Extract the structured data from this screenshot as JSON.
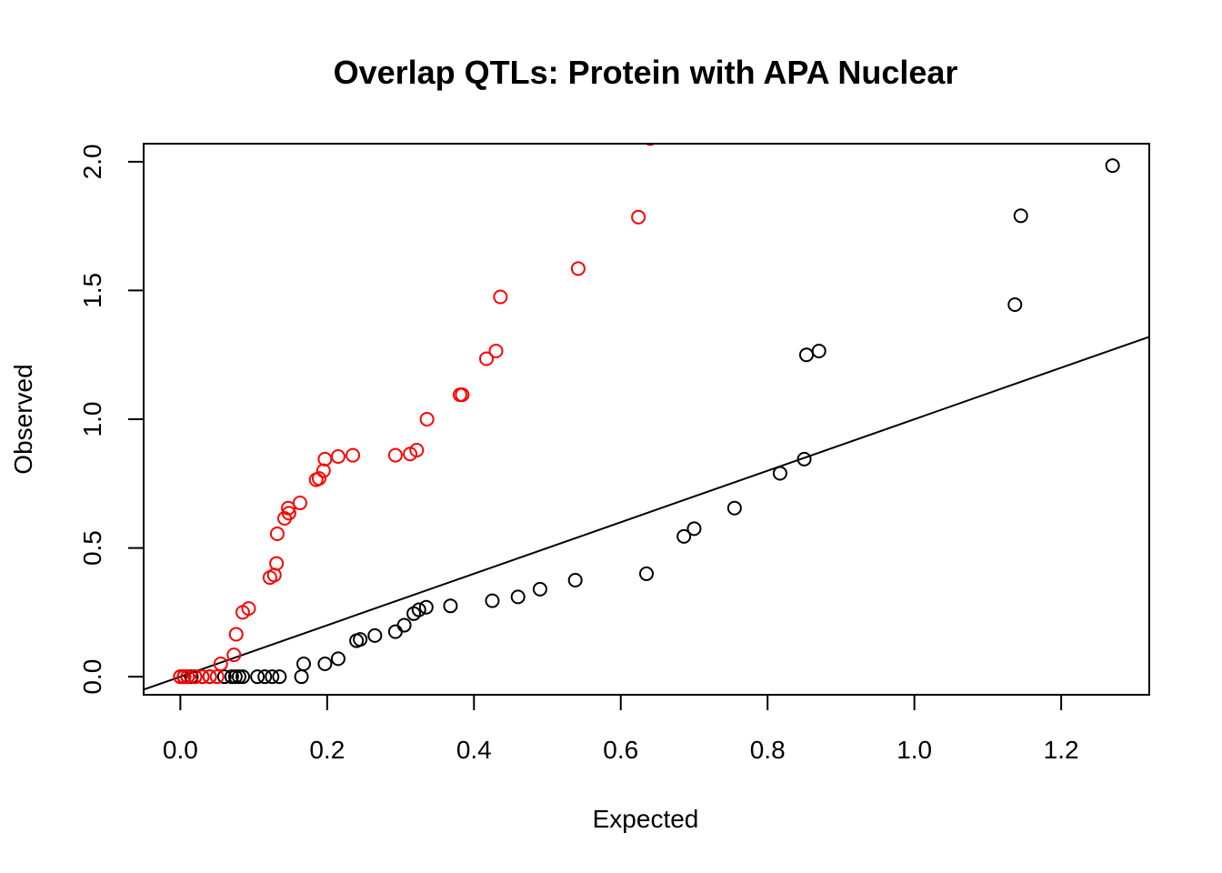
{
  "chart_data": {
    "type": "scatter",
    "title": "Overlap QTLs: Protein with APA Nuclear",
    "xlabel": "Expected",
    "ylabel": "Observed",
    "xlim": [
      -0.05,
      1.32
    ],
    "ylim": [
      -0.07,
      2.07
    ],
    "x_ticks": [
      {
        "value": 0.0,
        "label": "0.0"
      },
      {
        "value": 0.2,
        "label": "0.2"
      },
      {
        "value": 0.4,
        "label": "0.4"
      },
      {
        "value": 0.6,
        "label": "0.6"
      },
      {
        "value": 0.8,
        "label": "0.8"
      },
      {
        "value": 1.0,
        "label": "1.0"
      },
      {
        "value": 1.2,
        "label": "1.2"
      }
    ],
    "y_ticks": [
      {
        "value": 0.0,
        "label": "0.0"
      },
      {
        "value": 0.5,
        "label": "0.5"
      },
      {
        "value": 1.0,
        "label": "1.0"
      },
      {
        "value": 1.5,
        "label": "1.5"
      },
      {
        "value": 2.0,
        "label": "2.0"
      }
    ],
    "grid": false,
    "reference_line": {
      "slope": 1,
      "intercept": 0,
      "color": "#000000"
    },
    "series": [
      {
        "color": "#000000",
        "marker": "open-circle",
        "points": [
          [
            0.0,
            0.0
          ],
          [
            0.005,
            0.0
          ],
          [
            0.01,
            0.0
          ],
          [
            0.015,
            0.0
          ],
          [
            0.02,
            0.0
          ],
          [
            0.03,
            0.0
          ],
          [
            0.04,
            0.0
          ],
          [
            0.06,
            0.0
          ],
          [
            0.07,
            0.0
          ],
          [
            0.075,
            0.0
          ],
          [
            0.08,
            0.0
          ],
          [
            0.085,
            0.0
          ],
          [
            0.105,
            0.0
          ],
          [
            0.115,
            0.0
          ],
          [
            0.125,
            0.0
          ],
          [
            0.135,
            0.0
          ],
          [
            0.165,
            0.0
          ],
          [
            0.168,
            0.05
          ],
          [
            0.197,
            0.05
          ],
          [
            0.215,
            0.07
          ],
          [
            0.24,
            0.14
          ],
          [
            0.245,
            0.145
          ],
          [
            0.265,
            0.16
          ],
          [
            0.293,
            0.175
          ],
          [
            0.305,
            0.2
          ],
          [
            0.318,
            0.245
          ],
          [
            0.325,
            0.26
          ],
          [
            0.335,
            0.27
          ],
          [
            0.368,
            0.275
          ],
          [
            0.425,
            0.295
          ],
          [
            0.46,
            0.31
          ],
          [
            0.49,
            0.34
          ],
          [
            0.538,
            0.375
          ],
          [
            0.635,
            0.4
          ],
          [
            0.686,
            0.545
          ],
          [
            0.7,
            0.575
          ],
          [
            0.755,
            0.655
          ],
          [
            0.817,
            0.79
          ],
          [
            0.85,
            0.845
          ],
          [
            0.853,
            1.25
          ],
          [
            0.87,
            1.265
          ],
          [
            1.137,
            1.445
          ],
          [
            1.145,
            1.79
          ],
          [
            1.27,
            1.985
          ]
        ]
      },
      {
        "color": "#ff0000",
        "marker": "open-circle",
        "points": [
          [
            0.0,
            0.0
          ],
          [
            0.005,
            0.0
          ],
          [
            0.01,
            0.0
          ],
          [
            0.02,
            0.0
          ],
          [
            0.03,
            0.0
          ],
          [
            0.04,
            0.0
          ],
          [
            0.05,
            0.0
          ],
          [
            0.055,
            0.05
          ],
          [
            0.073,
            0.085
          ],
          [
            0.076,
            0.165
          ],
          [
            0.085,
            0.25
          ],
          [
            0.093,
            0.265
          ],
          [
            0.122,
            0.385
          ],
          [
            0.128,
            0.395
          ],
          [
            0.131,
            0.44
          ],
          [
            0.132,
            0.555
          ],
          [
            0.142,
            0.615
          ],
          [
            0.148,
            0.635
          ],
          [
            0.147,
            0.655
          ],
          [
            0.163,
            0.675
          ],
          [
            0.185,
            0.765
          ],
          [
            0.189,
            0.77
          ],
          [
            0.195,
            0.8
          ],
          [
            0.197,
            0.845
          ],
          [
            0.215,
            0.855
          ],
          [
            0.235,
            0.86
          ],
          [
            0.293,
            0.86
          ],
          [
            0.313,
            0.865
          ],
          [
            0.322,
            0.88
          ],
          [
            0.336,
            1.0
          ],
          [
            0.381,
            1.095
          ],
          [
            0.384,
            1.095
          ],
          [
            0.417,
            1.235
          ],
          [
            0.43,
            1.265
          ],
          [
            0.436,
            1.475
          ],
          [
            0.542,
            1.585
          ],
          [
            0.624,
            1.785
          ],
          [
            0.64,
            2.09
          ]
        ]
      }
    ]
  }
}
